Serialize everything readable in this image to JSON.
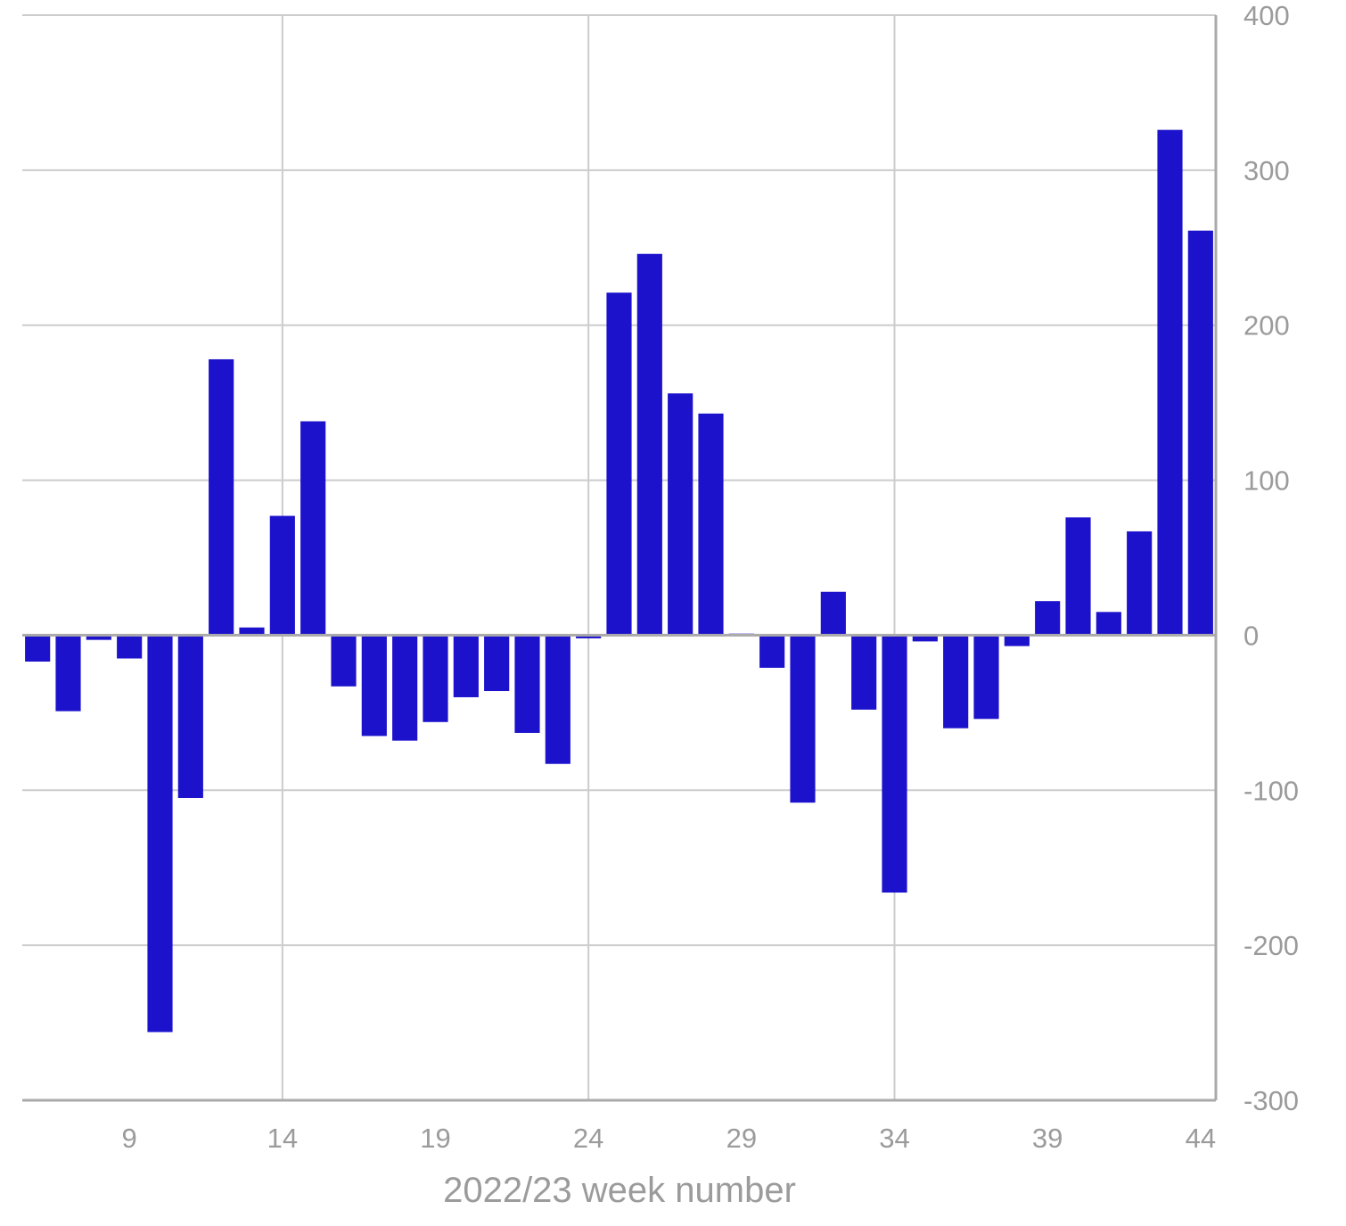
{
  "chart_data": {
    "type": "bar",
    "xlabel": "2022/23 week number",
    "ylabel": "",
    "ylim": [
      -300,
      400
    ],
    "yticks": [
      400,
      300,
      200,
      100,
      0,
      -100,
      -200,
      -300
    ],
    "xticks": [
      9,
      14,
      19,
      24,
      29,
      34,
      39,
      44
    ],
    "y_axis_side": "right",
    "grid": true,
    "bar_color": "#1c12cc",
    "categories": [
      6,
      7,
      8,
      9,
      10,
      11,
      12,
      13,
      14,
      15,
      16,
      17,
      18,
      19,
      20,
      21,
      22,
      23,
      24,
      25,
      26,
      27,
      28,
      29,
      30,
      31,
      32,
      33,
      34,
      35,
      36,
      37,
      38,
      39,
      40,
      41,
      42,
      43,
      44
    ],
    "values": [
      -17,
      -49,
      -3,
      -15,
      -256,
      -105,
      178,
      5,
      77,
      138,
      -33,
      -65,
      -68,
      -56,
      -40,
      -36,
      -63,
      -83,
      -2,
      221,
      246,
      156,
      143,
      1,
      -21,
      -108,
      28,
      -48,
      -166,
      -4,
      -60,
      -54,
      -7,
      22,
      76,
      15,
      67,
      326,
      261
    ]
  }
}
